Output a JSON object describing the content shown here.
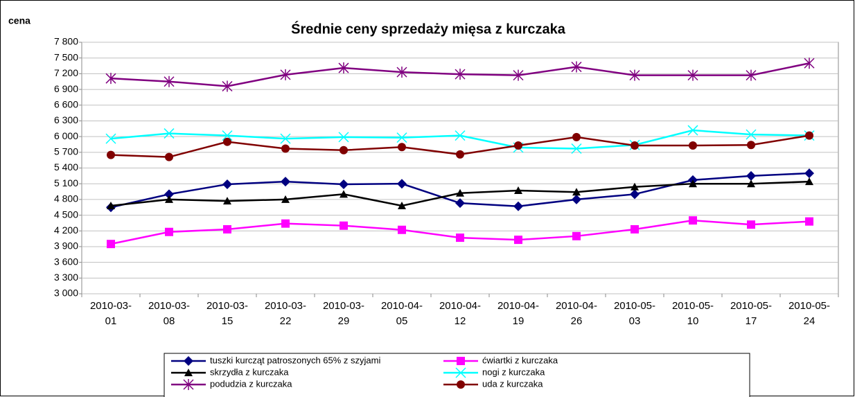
{
  "chart_data": {
    "type": "line",
    "title": "Średnie ceny sprzedaży mięsa z kurczaka",
    "y_label": "cena",
    "categories": [
      "2010-03-01",
      "2010-03-08",
      "2010-03-15",
      "2010-03-22",
      "2010-03-29",
      "2010-04-05",
      "2010-04-12",
      "2010-04-19",
      "2010-04-26",
      "2010-05-03",
      "2010-05-10",
      "2010-05-17",
      "2010-05-24"
    ],
    "series": [
      {
        "name": "tuszki kurcząt patroszonych 65% z szyjami",
        "color": "#000080",
        "marker": "diamond",
        "values": [
          4650,
          4900,
          5090,
          5140,
          5090,
          5100,
          4730,
          4670,
          4800,
          4900,
          5170,
          5250,
          5300
        ]
      },
      {
        "name": "ćwiartki z kurczaka",
        "color": "#ff00ff",
        "marker": "square",
        "values": [
          3950,
          4180,
          4230,
          4340,
          4300,
          4220,
          4070,
          4030,
          4100,
          4230,
          4400,
          4320,
          4380
        ]
      },
      {
        "name": "skrzydła z kurczaka",
        "color": "#000000",
        "marker": "triangle",
        "values": [
          4680,
          4800,
          4770,
          4800,
          4900,
          4680,
          4920,
          4970,
          4940,
          5040,
          5100,
          5100,
          5140
        ]
      },
      {
        "name": "nogi z kurczaka",
        "color": "#00ffff",
        "marker": "x",
        "values": [
          5960,
          6060,
          6020,
          5960,
          5990,
          5980,
          6020,
          5790,
          5770,
          5840,
          6120,
          6040,
          6020
        ]
      },
      {
        "name": "podudzia z kurczaka",
        "color": "#800080",
        "marker": "star",
        "values": [
          7110,
          7050,
          6960,
          7180,
          7310,
          7230,
          7190,
          7170,
          7330,
          7170,
          7170,
          7170,
          7400
        ]
      },
      {
        "name": "uda z kurczaka",
        "color": "#800000",
        "marker": "circle",
        "values": [
          5650,
          5610,
          5900,
          5770,
          5740,
          5800,
          5660,
          5830,
          5990,
          5830,
          5830,
          5840,
          6020
        ]
      }
    ],
    "ylim": [
      3000,
      7800
    ],
    "yticks": [
      {
        "value": 3000,
        "label": "3 000"
      },
      {
        "value": 3300,
        "label": "3 300"
      },
      {
        "value": 3600,
        "label": "3 600"
      },
      {
        "value": 3900,
        "label": "3 900"
      },
      {
        "value": 4200,
        "label": "4 200"
      },
      {
        "value": 4500,
        "label": "4 500"
      },
      {
        "value": 4800,
        "label": "4 800"
      },
      {
        "value": 5100,
        "label": "5 100"
      },
      {
        "value": 5400,
        "label": "5 400"
      },
      {
        "value": 5700,
        "label": "5 700"
      },
      {
        "value": 6000,
        "label": "6 000"
      },
      {
        "value": 6300,
        "label": "6 300"
      },
      {
        "value": 6600,
        "label": "6 600"
      },
      {
        "value": 6900,
        "label": "6 900"
      },
      {
        "value": 7200,
        "label": "7 200"
      },
      {
        "value": 7500,
        "label": "7 500"
      },
      {
        "value": 7800,
        "label": "7 800"
      }
    ],
    "grid": true,
    "legend": "bottom"
  }
}
